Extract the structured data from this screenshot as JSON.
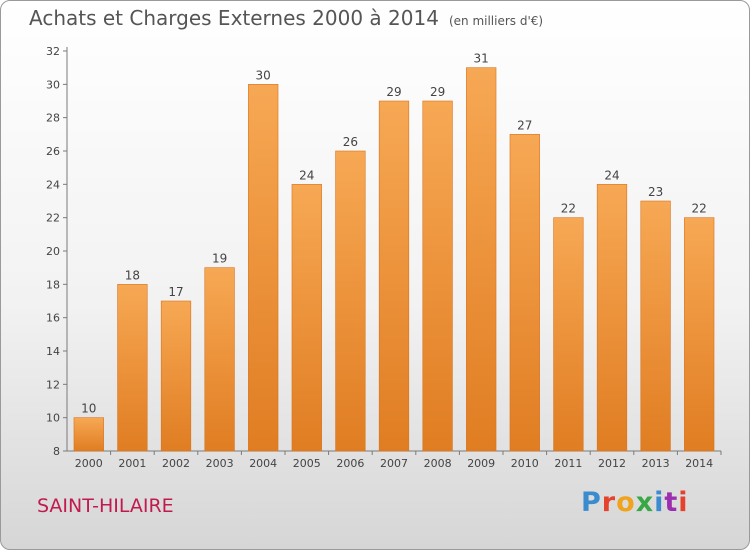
{
  "title": "Achats et Charges Externes 2000 à 2014",
  "unit_note": "(en milliers d'€)",
  "town": "SAINT-HILAIRE",
  "logo": {
    "text": "Proxiti",
    "letter_colors": [
      "#3a8ccf",
      "#e5412c",
      "#f0a31c",
      "#38a845",
      "#3a8ccf",
      "#9c2fb0",
      "#e5412c"
    ]
  },
  "colors": {
    "bar_light": "#f7a854",
    "bar_dark": "#e07d22",
    "bar_edge": "#d8731e",
    "axis": "#7a7a7a"
  },
  "chart_data": {
    "type": "bar",
    "categories": [
      "2000",
      "2001",
      "2002",
      "2003",
      "2004",
      "2005",
      "2006",
      "2007",
      "2008",
      "2009",
      "2010",
      "2011",
      "2012",
      "2013",
      "2014"
    ],
    "values": [
      10,
      18,
      17,
      19,
      30,
      24,
      26,
      29,
      29,
      31,
      27,
      22,
      24,
      23,
      22
    ],
    "ylim": [
      8,
      32
    ],
    "yticks": [
      8,
      10,
      12,
      14,
      16,
      18,
      20,
      22,
      24,
      26,
      28,
      30,
      32
    ],
    "grid": false,
    "legend": "none"
  }
}
